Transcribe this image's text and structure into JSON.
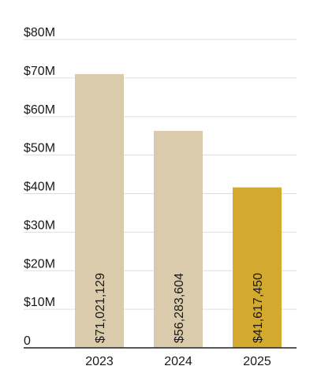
{
  "chart_data": {
    "type": "bar",
    "categories": [
      "2023",
      "2024",
      "2025"
    ],
    "values": [
      71021129,
      56283604,
      41617450
    ],
    "data_labels": [
      "$71,021,129",
      "$56,283,604",
      "$41,617,450"
    ],
    "ylim": [
      0,
      80000000
    ],
    "yticks": [
      0,
      10000000,
      20000000,
      30000000,
      40000000,
      50000000,
      60000000,
      70000000,
      80000000
    ],
    "ytick_labels": [
      "0",
      "$10M",
      "$20M",
      "$30M",
      "$40M",
      "$50M",
      "$60M",
      "$70M",
      "$80M"
    ],
    "grid": true,
    "colors": [
      "#d9cbab",
      "#d9cbab",
      "#d4aa2e"
    ],
    "grid_color": "#dddddd",
    "axis_color": "#222222"
  }
}
